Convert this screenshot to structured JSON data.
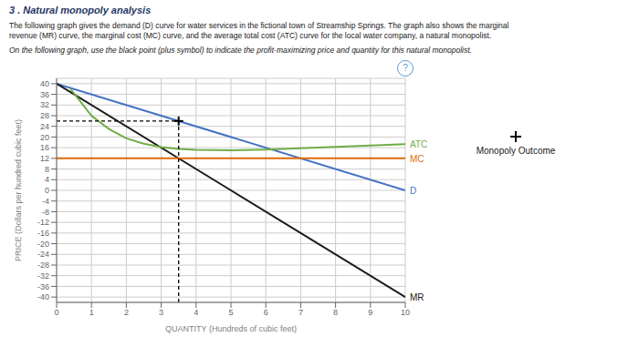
{
  "chart_data": {
    "type": "line",
    "title": "3 . Natural monopoly analysis",
    "subtitle": [
      "The following graph gives the demand (D) curve for water services in the fictional town of Streamship Springs. The graph also shows the marginal",
      "revenue (MR) curve, the marginal cost (MC) curve, and the average total cost (ATC) curve for the local water company, a natural monopolist."
    ],
    "annotations": [
      "On the following graph, use the black point (plus symbol) to indicate the profit-maximizing price and quantity for this natural monopolist.",
      "?"
    ],
    "xlabel": "QUANTITY (Hundreds of cubic feet)",
    "ylabel": "PRICE (Dollars per hundred cubic feet)",
    "xlim": [
      0,
      10
    ],
    "ylim": [
      -42,
      42
    ],
    "xticks": [
      0,
      1,
      2,
      3,
      4,
      5,
      6,
      7,
      8,
      9,
      10
    ],
    "yticks": [
      -40,
      -36,
      -32,
      -28,
      -24,
      -20,
      -16,
      -12,
      -8,
      -4,
      0,
      4,
      8,
      12,
      16,
      20,
      24,
      28,
      32,
      36,
      40
    ],
    "grid": true,
    "series": [
      {
        "name": "D",
        "color": "#4472c4",
        "x": [
          0,
          10
        ],
        "values": [
          40,
          0
        ]
      },
      {
        "name": "MR",
        "color": "#1a1a1a",
        "x": [
          0,
          5,
          10
        ],
        "values": [
          40,
          0,
          -40
        ]
      },
      {
        "name": "MC",
        "color": "#e36c09",
        "x": [
          0,
          10
        ],
        "values": [
          12,
          12
        ]
      },
      {
        "name": "ATC",
        "color": "#70ad47",
        "x": [
          0.4,
          1,
          1.5,
          2,
          2.5,
          3,
          3.5,
          4,
          5,
          6,
          7,
          8,
          9,
          10
        ],
        "values": [
          38,
          28,
          23,
          19.5,
          17.5,
          16.2,
          15.5,
          15.2,
          15.0,
          15.3,
          15.8,
          16.3,
          16.8,
          17.3
        ]
      },
      {
        "name": "Monopoly Outcome",
        "type": "scatter",
        "marker": "plus",
        "color": "#000000",
        "x": [
          3.5
        ],
        "values": [
          26
        ]
      }
    ]
  }
}
